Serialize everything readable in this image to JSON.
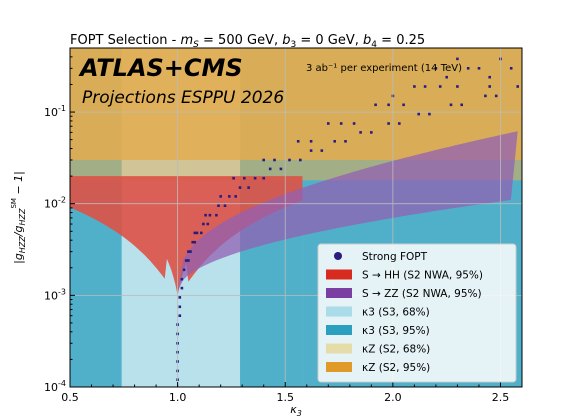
{
  "chart_data": {
    "type": "scatter",
    "title": "FOPT Selection - m_S = 500 GeV, b_3 = 0 GeV, b_4 = 0.25",
    "title_parts": {
      "prefix": "FOPT Selection - ",
      "p1": "m",
      "p1_sub": "S",
      "p1_val": " = 500 GeV, ",
      "p2": "b",
      "p2_sub": "3",
      "p2_val": " = 0 GeV, ",
      "p3": "b",
      "p3_sub": "4",
      "p3_val": " = 0.25"
    },
    "xlabel": "κ3",
    "ylabel": "|g_HZZ/g_HZZ^SM − 1|",
    "xlim": [
      0.5,
      2.6
    ],
    "ylim": [
      0.0001,
      0.5
    ],
    "yscale": "log",
    "x_ticks": [
      "0.5",
      "1.0",
      "1.5",
      "2.0",
      "2.5"
    ],
    "y_ticks": [
      "10^-4",
      "10^-3",
      "10^-2",
      "10^-1"
    ],
    "grid": true,
    "legend_position": "lower-right",
    "experiment_label": "ATLAS+CMS",
    "subtitle": "Projections ESPPU 2026",
    "luminosity_label": "3 ab⁻¹  per experiment (14 TeV)",
    "legend": [
      {
        "label": "Strong FOPT",
        "color": "#2b1c80",
        "kind": "dot"
      },
      {
        "label": "S → HH  (S2 NWA, 95%)",
        "color": "#d62b1e",
        "kind": "patch"
      },
      {
        "label": "S → ZZ  (S2 NWA, 95%)",
        "color": "#7b3fa3",
        "kind": "patch"
      },
      {
        "label": "κ3  (S3, 68%)",
        "color": "#a9dbe8",
        "kind": "patch"
      },
      {
        "label": "κ3  (S3, 95%)",
        "color": "#2a9fbf",
        "kind": "patch"
      },
      {
        "label": "κZ  (S2, 68%)",
        "color": "#e6dcaa",
        "kind": "patch"
      },
      {
        "label": "κZ  (S2, 95%)",
        "color": "#e09a28",
        "kind": "patch"
      }
    ],
    "regions": {
      "kappa3_68": {
        "x": [
          0.74,
          1.29
        ],
        "color": "#a9dbe8"
      },
      "kappa3_95": {
        "x": [
          0.5,
          1.58
        ],
        "color": "#2a9fbf"
      },
      "kappaZ_95": {
        "y": 0.03,
        "color": "#e09a28"
      },
      "kappaZ_68": {
        "y": 0.018,
        "color": "#e6dcaa"
      },
      "S_HH_floor": 0.001,
      "S_HH_top": 0.02,
      "S_HH_x": [
        0.5,
        1.58
      ]
    },
    "series": [
      {
        "name": "Strong FOPT",
        "points": [
          [
            1.0,
            0.00012
          ],
          [
            1.0,
            0.00015
          ],
          [
            1.0,
            0.00019
          ],
          [
            1.0,
            0.00024
          ],
          [
            1.0,
            0.0003
          ],
          [
            1.0,
            0.00038
          ],
          [
            1.0,
            0.00048
          ],
          [
            1.01,
            0.0006
          ],
          [
            1.01,
            0.00075
          ],
          [
            1.01,
            0.00095
          ],
          [
            1.02,
            0.0012
          ],
          [
            1.02,
            0.0015
          ],
          [
            1.03,
            0.0019
          ],
          [
            1.04,
            0.0024
          ],
          [
            1.05,
            0.003
          ],
          [
            1.07,
            0.0038
          ],
          [
            1.09,
            0.0048
          ],
          [
            1.12,
            0.006
          ],
          [
            1.15,
            0.0075
          ],
          [
            1.19,
            0.0095
          ],
          [
            1.24,
            0.012
          ],
          [
            1.29,
            0.015
          ],
          [
            1.36,
            0.019
          ],
          [
            1.43,
            0.024
          ],
          [
            1.52,
            0.03
          ],
          [
            1.62,
            0.038
          ],
          [
            1.73,
            0.048
          ],
          [
            1.85,
            0.06
          ],
          [
            1.98,
            0.075
          ],
          [
            2.12,
            0.095
          ],
          [
            2.27,
            0.12
          ],
          [
            2.43,
            0.15
          ],
          [
            2.58,
            0.19
          ],
          [
            1.05,
            0.0024
          ],
          [
            1.06,
            0.003
          ],
          [
            1.08,
            0.0038
          ],
          [
            1.11,
            0.0048
          ],
          [
            1.14,
            0.006
          ],
          [
            1.18,
            0.0075
          ],
          [
            1.22,
            0.0095
          ],
          [
            1.27,
            0.012
          ],
          [
            1.33,
            0.015
          ],
          [
            1.4,
            0.019
          ],
          [
            1.48,
            0.024
          ],
          [
            1.57,
            0.03
          ],
          [
            1.67,
            0.038
          ],
          [
            1.78,
            0.048
          ],
          [
            1.9,
            0.06
          ],
          [
            2.03,
            0.075
          ],
          [
            2.17,
            0.095
          ],
          [
            2.32,
            0.12
          ],
          [
            2.48,
            0.15
          ],
          [
            1.08,
            0.0048
          ],
          [
            1.13,
            0.0075
          ],
          [
            1.2,
            0.012
          ],
          [
            1.31,
            0.019
          ],
          [
            1.45,
            0.03
          ],
          [
            1.62,
            0.048
          ],
          [
            1.82,
            0.075
          ],
          [
            2.05,
            0.12
          ],
          [
            2.3,
            0.19
          ],
          [
            1.26,
            0.019
          ],
          [
            1.4,
            0.03
          ],
          [
            1.56,
            0.048
          ],
          [
            1.76,
            0.075
          ],
          [
            1.98,
            0.12
          ],
          [
            2.22,
            0.19
          ],
          [
            2.45,
            0.24
          ],
          [
            1.7,
            0.075
          ],
          [
            1.92,
            0.12
          ],
          [
            2.15,
            0.19
          ],
          [
            2.4,
            0.3
          ],
          [
            2.0,
            0.15
          ],
          [
            2.25,
            0.24
          ],
          [
            2.5,
            0.38
          ],
          [
            2.1,
            0.19
          ],
          [
            2.35,
            0.3
          ],
          [
            2.55,
            0.3
          ],
          [
            2.2,
            0.3
          ],
          [
            2.45,
            0.19
          ],
          [
            2.3,
            0.38
          ]
        ]
      }
    ]
  }
}
